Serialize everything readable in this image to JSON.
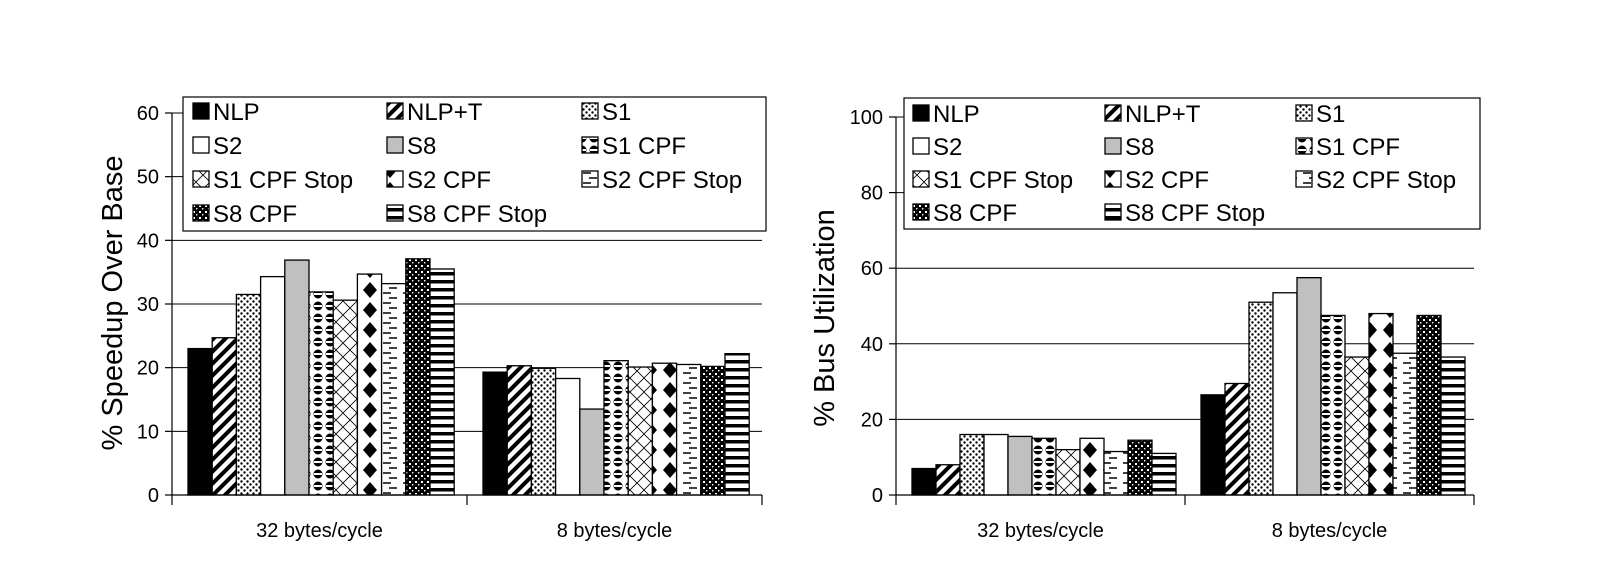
{
  "chart_data": [
    {
      "type": "bar",
      "ylabel": "% Speedup Over Base",
      "ylim": [
        0,
        60
      ],
      "yticks": [
        0,
        10,
        20,
        30,
        40,
        50,
        60
      ],
      "grid": true,
      "legend_position": "top",
      "categories": [
        "32 bytes/cycle",
        "8 bytes/cycle"
      ],
      "series": [
        {
          "name": "NLP",
          "pattern": "solid-black",
          "values": [
            23.0,
            19.3
          ]
        },
        {
          "name": "NLP+T",
          "pattern": "diag-thick",
          "values": [
            24.7,
            20.3
          ]
        },
        {
          "name": "S1",
          "pattern": "dots",
          "values": [
            31.5,
            19.9
          ]
        },
        {
          "name": "S2",
          "pattern": "white",
          "values": [
            34.3,
            18.3
          ]
        },
        {
          "name": "S8",
          "pattern": "gray",
          "values": [
            36.9,
            13.5
          ]
        },
        {
          "name": "S1 CPF",
          "pattern": "circles",
          "values": [
            31.9,
            21.1
          ]
        },
        {
          "name": "S1 CPF Stop",
          "pattern": "crosshatch",
          "values": [
            30.6,
            20.1
          ]
        },
        {
          "name": "S2 CPF",
          "pattern": "diamonds",
          "values": [
            34.7,
            20.7
          ]
        },
        {
          "name": "S2 CPF Stop",
          "pattern": "dashes",
          "values": [
            33.2,
            20.5
          ]
        },
        {
          "name": "S8 CPF",
          "pattern": "dense-dots",
          "values": [
            37.1,
            20.2
          ]
        },
        {
          "name": "S8 CPF Stop",
          "pattern": "hstripes",
          "values": [
            35.5,
            22.2
          ]
        }
      ]
    },
    {
      "type": "bar",
      "ylabel": "% Bus Utilization",
      "ylim": [
        0,
        100
      ],
      "yticks": [
        0,
        20,
        40,
        60,
        80,
        100
      ],
      "grid": true,
      "legend_position": "top",
      "categories": [
        "32 bytes/cycle",
        "8 bytes/cycle"
      ],
      "series": [
        {
          "name": "NLP",
          "pattern": "solid-black",
          "values": [
            7.0,
            26.5
          ]
        },
        {
          "name": "NLP+T",
          "pattern": "diag-thick",
          "values": [
            8.0,
            29.5
          ]
        },
        {
          "name": "S1",
          "pattern": "dots",
          "values": [
            16.0,
            51.0
          ]
        },
        {
          "name": "S2",
          "pattern": "white",
          "values": [
            16.0,
            53.5
          ]
        },
        {
          "name": "S8",
          "pattern": "gray",
          "values": [
            15.5,
            57.5
          ]
        },
        {
          "name": "S1 CPF",
          "pattern": "circles",
          "values": [
            15.0,
            47.5
          ]
        },
        {
          "name": "S1 CPF Stop",
          "pattern": "crosshatch",
          "values": [
            12.0,
            36.5
          ]
        },
        {
          "name": "S2 CPF",
          "pattern": "diamonds",
          "values": [
            15.0,
            48.0
          ]
        },
        {
          "name": "S2 CPF Stop",
          "pattern": "dashes",
          "values": [
            11.5,
            37.5
          ]
        },
        {
          "name": "S8 CPF",
          "pattern": "dense-dots",
          "values": [
            14.5,
            47.5
          ]
        },
        {
          "name": "S8 CPF Stop",
          "pattern": "hstripes",
          "values": [
            11.0,
            36.5
          ]
        }
      ]
    }
  ]
}
